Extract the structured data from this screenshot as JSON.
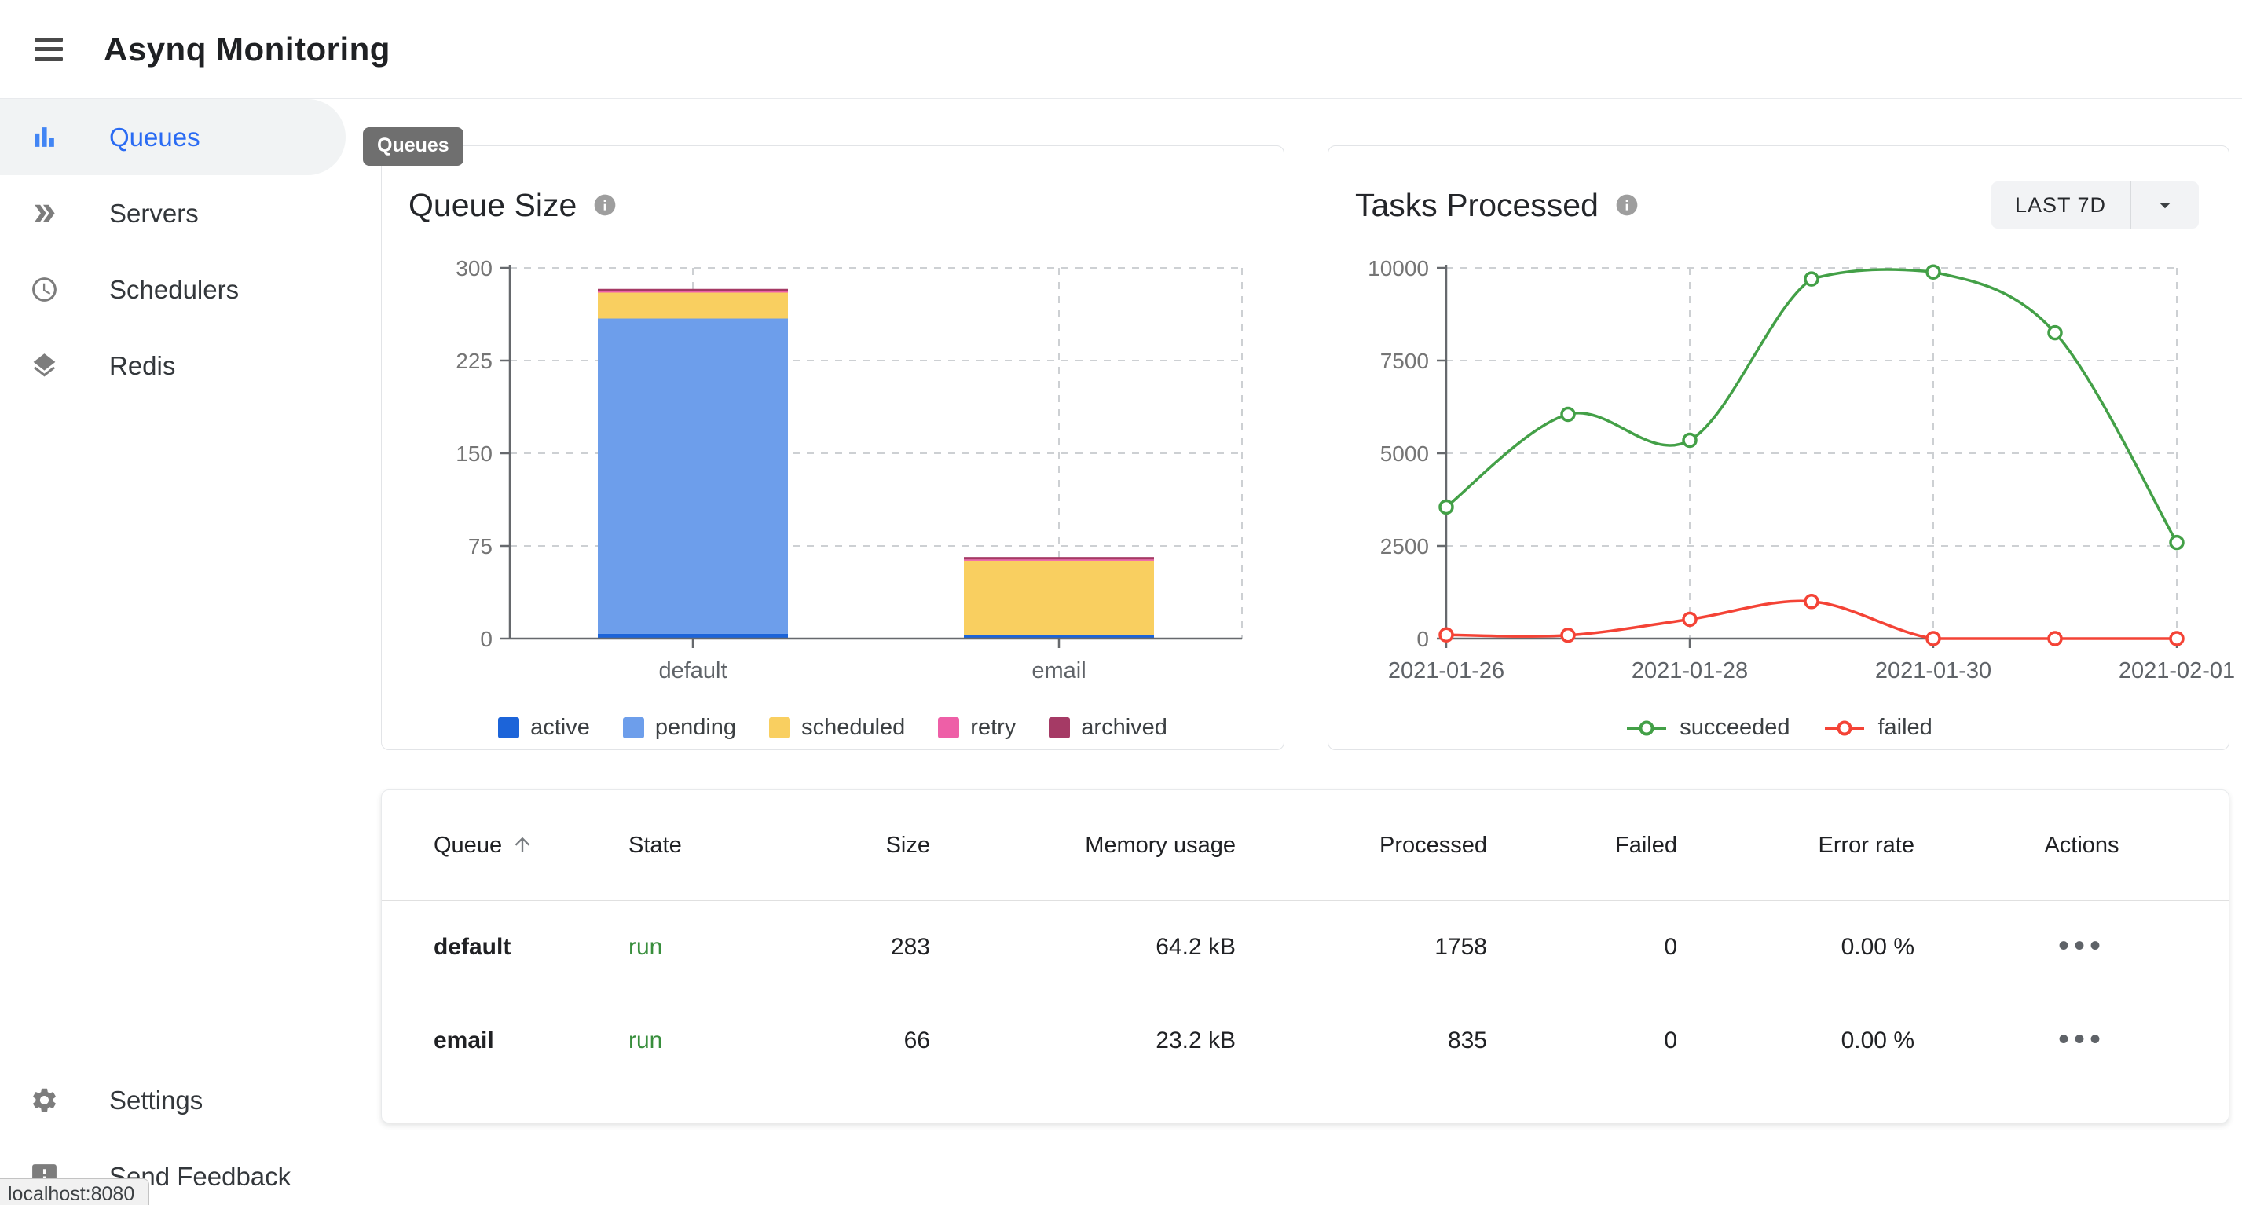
{
  "app_bar": {
    "title": "Asynq Monitoring"
  },
  "sidebar": {
    "items": [
      {
        "label": "Queues",
        "active": true
      },
      {
        "label": "Servers",
        "active": false
      },
      {
        "label": "Schedulers",
        "active": false
      },
      {
        "label": "Redis",
        "active": false
      }
    ],
    "footer_items": [
      {
        "label": "Settings"
      },
      {
        "label": "Send Feedback"
      }
    ]
  },
  "tooltip_chip": {
    "label": "Queues"
  },
  "browser_status_bar": {
    "text": "localhost:8080"
  },
  "cards": {
    "queue_size": {
      "title": "Queue Size"
    },
    "tasks_processed": {
      "title": "Tasks Processed",
      "range_selector": {
        "selected": "LAST 7D"
      }
    }
  },
  "chart_data": [
    {
      "id": "queue-size",
      "type": "bar",
      "stacked": true,
      "title": "Queue Size",
      "categories": [
        "default",
        "email"
      ],
      "series": [
        {
          "name": "active",
          "color": "#1c64d9",
          "values": [
            4,
            3
          ]
        },
        {
          "name": "pending",
          "color": "#6d9eeb",
          "values": [
            255,
            0
          ]
        },
        {
          "name": "scheduled",
          "color": "#f9cf60",
          "values": [
            21,
            60
          ]
        },
        {
          "name": "retry",
          "color": "#ee5fa7",
          "values": [
            1,
            1
          ]
        },
        {
          "name": "archived",
          "color": "#a53a65",
          "values": [
            2,
            2
          ]
        }
      ],
      "ylim": [
        0,
        300
      ],
      "yticks": [
        0,
        75,
        150,
        225,
        300
      ],
      "grid": "dashed",
      "legend_position": "bottom"
    },
    {
      "id": "tasks-processed",
      "type": "line",
      "title": "Tasks Processed",
      "x": [
        "2021-01-26",
        "2021-01-27",
        "2021-01-28",
        "2021-01-29",
        "2021-01-30",
        "2021-01-31",
        "2021-02-01"
      ],
      "x_tick_indices": [
        0,
        2,
        4,
        6
      ],
      "series": [
        {
          "name": "succeeded",
          "color": "#43a047",
          "values": [
            3550,
            6050,
            5350,
            9700,
            9890,
            8250,
            2593
          ]
        },
        {
          "name": "failed",
          "color": "#f44336",
          "values": [
            100,
            90,
            520,
            1000,
            0,
            0,
            0
          ]
        }
      ],
      "ylim": [
        0,
        10000
      ],
      "yticks": [
        0,
        2500,
        5000,
        7500,
        10000
      ],
      "grid": "dashed",
      "legend_position": "bottom"
    }
  ],
  "table": {
    "columns": [
      {
        "label": "Queue",
        "sorted": "asc"
      },
      {
        "label": "State"
      },
      {
        "label": "Size"
      },
      {
        "label": "Memory usage"
      },
      {
        "label": "Processed"
      },
      {
        "label": "Failed"
      },
      {
        "label": "Error rate"
      },
      {
        "label": "Actions"
      }
    ],
    "rows": [
      {
        "queue": "default",
        "state": "run",
        "size": "283",
        "memory_usage": "64.2 kB",
        "processed": "1758",
        "failed": "0",
        "error_rate": "0.00 %",
        "actions": "•••"
      },
      {
        "queue": "email",
        "state": "run",
        "size": "66",
        "memory_usage": "23.2 kB",
        "processed": "835",
        "failed": "0",
        "error_rate": "0.00 %",
        "actions": "•••"
      }
    ]
  },
  "colors": {
    "accent_blue": "#2a6bf3",
    "run_green": "#388e3c",
    "succeeded_green": "#43a047",
    "failed_red": "#f44336",
    "chip_gray": "#6f6f6f"
  }
}
